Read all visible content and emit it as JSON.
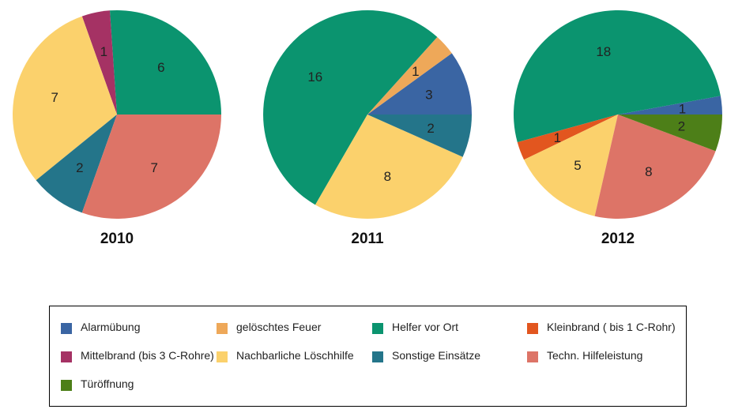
{
  "chart_data": {
    "type": "pie",
    "categories": [
      {
        "name": "Alarmübung",
        "color": "#3a65a3"
      },
      {
        "name": "gelöschtes Feuer",
        "color": "#eea859"
      },
      {
        "name": "Helfer vor Ort",
        "color": "#0b946f"
      },
      {
        "name": "Kleinbrand ( bis 1 C-Rohr)",
        "color": "#e2561f"
      },
      {
        "name": "Mittelbrand (bis 3 C-Rohre)",
        "color": "#a53264"
      },
      {
        "name": "Nachbarliche Löschhilfe",
        "color": "#fbd16c"
      },
      {
        "name": "Sonstige Einsätze",
        "color": "#24758a"
      },
      {
        "name": "Techn. Hilfeleistung",
        "color": "#dd7467"
      },
      {
        "name": "Türöffnung",
        "color": "#4d7f18"
      }
    ],
    "pies": [
      {
        "title": "2010",
        "slices": [
          {
            "category": "Helfer vor Ort",
            "value": 6
          },
          {
            "category": "Mittelbrand (bis 3 C-Rohre)",
            "value": 1
          },
          {
            "category": "Nachbarliche Löschhilfe",
            "value": 7
          },
          {
            "category": "Sonstige Einsätze",
            "value": 2
          },
          {
            "category": "Techn. Hilfeleistung",
            "value": 7
          }
        ]
      },
      {
        "title": "2011",
        "slices": [
          {
            "category": "Alarmübung",
            "value": 3
          },
          {
            "category": "gelöschtes Feuer",
            "value": 1
          },
          {
            "category": "Helfer vor Ort",
            "value": 16
          },
          {
            "category": "Nachbarliche Löschhilfe",
            "value": 8
          },
          {
            "category": "Sonstige Einsätze",
            "value": 2
          }
        ]
      },
      {
        "title": "2012",
        "slices": [
          {
            "category": "Alarmübung",
            "value": 1
          },
          {
            "category": "Helfer vor Ort",
            "value": 18
          },
          {
            "category": "Kleinbrand ( bis 1 C-Rohr)",
            "value": 1
          },
          {
            "category": "Nachbarliche Löschhilfe",
            "value": 5
          },
          {
            "category": "Techn. Hilfeleistung",
            "value": 8
          },
          {
            "category": "Türöffnung",
            "value": 2
          }
        ]
      }
    ],
    "legend_position": "bottom"
  }
}
